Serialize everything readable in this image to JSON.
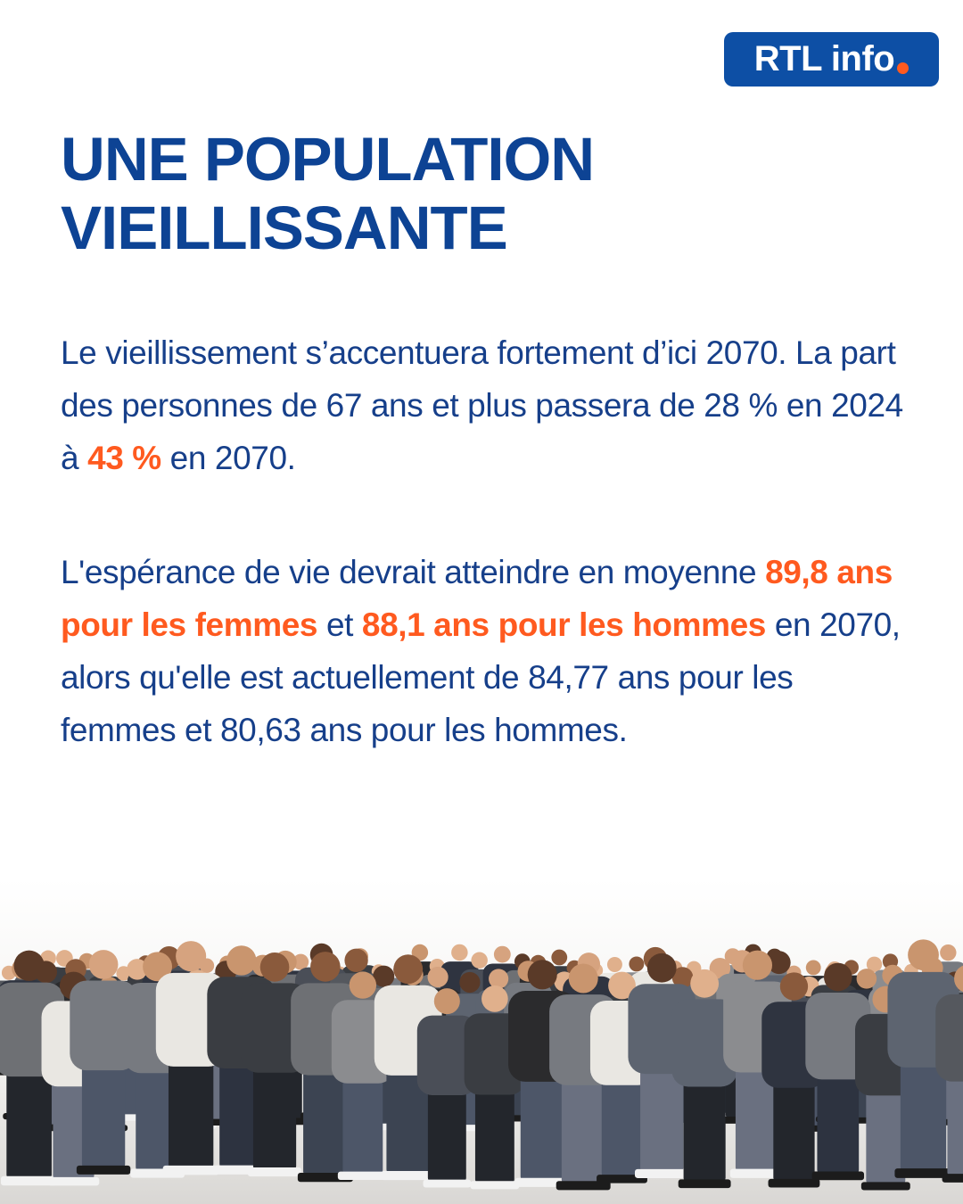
{
  "brand": {
    "logo_text": "RTL info",
    "logo_color": "#0d4fa5",
    "dot_color": "#ff5a1f"
  },
  "colors": {
    "title": "#0d4394",
    "body": "#163f8a",
    "highlight": "#ff5a1f"
  },
  "title": {
    "line1": "UNE POPULATION",
    "line2": "VIEILLISSANTE"
  },
  "paragraph1": {
    "text_before": "Le vieillissement s’accentuera fortement d’ici 2070. La part des personnes de 67 ans et plus passera de 28 % en 2024 à ",
    "highlight": "43 %",
    "text_after": " en 2070."
  },
  "paragraph2": {
    "text_before": "L'espérance de vie devrait atteindre en moyenne ",
    "highlight1": "89,8 ans pour les femmes",
    "text_middle": " et ",
    "highlight2": "88,1 ans pour les hommes",
    "text_after": " en 2070, alors qu'elle est actuellement de 84,77 ans pour les femmes et 80,63 ans pour les hommes."
  },
  "image": {
    "icon": "crowd-illustration"
  }
}
